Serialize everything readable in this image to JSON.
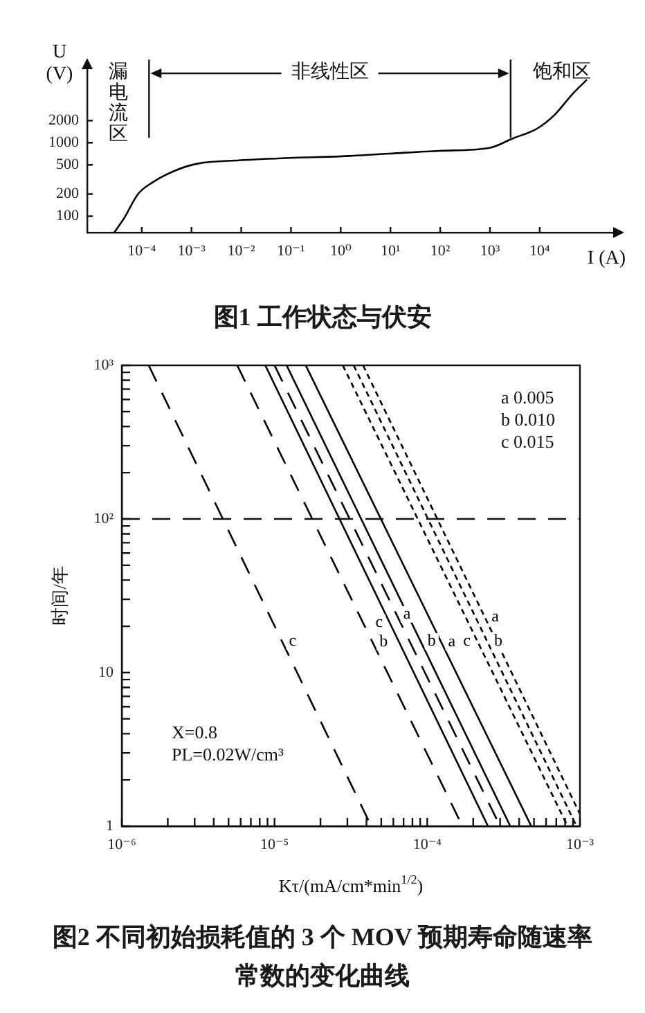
{
  "chart_data": [
    {
      "type": "line",
      "title": "图1 工作状态与伏安",
      "xlabel": "I (A)",
      "ylabel": "U (V)",
      "log": "xy",
      "xlim": [
        8e-06,
        300000.0
      ],
      "ylim": [
        60,
        10000
      ],
      "xticks": [
        {
          "value": 0.0001,
          "label": "10⁻⁴"
        },
        {
          "value": 0.001,
          "label": "10⁻³"
        },
        {
          "value": 0.01,
          "label": "10⁻²"
        },
        {
          "value": 0.1,
          "label": "10⁻¹"
        },
        {
          "value": 1,
          "label": "10⁰"
        },
        {
          "value": 10,
          "label": "10¹"
        },
        {
          "value": 100,
          "label": "10²"
        },
        {
          "value": 1000,
          "label": "10³"
        },
        {
          "value": 10000,
          "label": "10⁴"
        }
      ],
      "yticks": [
        100,
        200,
        500,
        1000,
        2000
      ],
      "series": [
        {
          "color": "#000000",
          "x": [
            2.8e-05,
            4.5e-05,
            8.4e-05,
            0.00016,
            0.00048,
            0.00135,
            0.009,
            0.093,
            0.93,
            9.5,
            98,
            980,
            2950,
            8800,
            20000,
            47000,
            89000
          ],
          "values": [
            60,
            96,
            200,
            285,
            420,
            520,
            575,
            620,
            650,
            710,
            775,
            850,
            1150,
            1550,
            2400,
            4700,
            7200
          ]
        }
      ],
      "ref_lines": [
        {
          "axis": "x",
          "value": 0.00014
        },
        {
          "axis": "x",
          "value": 2600
        }
      ],
      "annotations": [
        "漏电流区",
        "非线性区",
        "饱和区"
      ]
    },
    {
      "type": "line",
      "title": "图2 不同初始损耗值的 3 个 MOV 预期寿命随速率常数的变化曲线",
      "xlabel": "Kτ/(mA/cm*min$^{1/2}$)",
      "ylabel": "时间/年",
      "log": "xy",
      "xlim": [
        1e-06,
        0.001
      ],
      "ylim": [
        1,
        1000
      ],
      "xticks": [
        {
          "value": 1e-06,
          "label": "10⁻⁶"
        },
        {
          "value": 2e-06,
          "label": null
        },
        {
          "value": 3e-06,
          "label": null
        },
        {
          "value": 4e-06,
          "label": null
        },
        {
          "value": 5e-06,
          "label": null
        },
        {
          "value": 6e-06,
          "label": null
        },
        {
          "value": 7e-06,
          "label": null
        },
        {
          "value": 8e-06,
          "label": null
        },
        {
          "value": 9e-06,
          "label": null
        },
        {
          "value": 1e-05,
          "label": "10⁻⁵"
        },
        {
          "value": 2e-05,
          "label": null
        },
        {
          "value": 3e-05,
          "label": null
        },
        {
          "value": 4e-05,
          "label": null
        },
        {
          "value": 5e-05,
          "label": null
        },
        {
          "value": 6e-05,
          "label": null
        },
        {
          "value": 7e-05,
          "label": null
        },
        {
          "value": 8e-05,
          "label": null
        },
        {
          "value": 9e-05,
          "label": null
        },
        {
          "value": 0.0001,
          "label": "10⁻⁴"
        },
        {
          "value": 0.0002,
          "label": null
        },
        {
          "value": 0.0003,
          "label": null
        },
        {
          "value": 0.0004,
          "label": null
        },
        {
          "value": 0.0005,
          "label": null
        },
        {
          "value": 0.0006,
          "label": null
        },
        {
          "value": 0.0007,
          "label": null
        },
        {
          "value": 0.0008,
          "label": null
        },
        {
          "value": 0.0009,
          "label": null
        },
        {
          "value": 0.001,
          "label": "10⁻³"
        }
      ],
      "yticks": [
        1,
        {
          "value": 2,
          "label": null
        },
        {
          "value": 3,
          "label": null
        },
        {
          "value": 4,
          "label": null
        },
        {
          "value": 5,
          "label": null
        },
        {
          "value": 6,
          "label": null
        },
        {
          "value": 7,
          "label": null
        },
        {
          "value": 8,
          "label": null
        },
        {
          "value": 9,
          "label": null
        },
        10,
        {
          "value": 20,
          "label": null
        },
        {
          "value": 30,
          "label": null
        },
        {
          "value": 40,
          "label": null
        },
        {
          "value": 50,
          "label": null
        },
        {
          "value": 60,
          "label": null
        },
        {
          "value": 70,
          "label": null
        },
        {
          "value": 80,
          "label": null
        },
        {
          "value": 90,
          "label": null
        },
        {
          "value": 100,
          "label": "10²"
        },
        {
          "value": 200,
          "label": null
        },
        {
          "value": 300,
          "label": null
        },
        {
          "value": 400,
          "label": null
        },
        {
          "value": 500,
          "label": null
        },
        {
          "value": 600,
          "label": null
        },
        {
          "value": 700,
          "label": null
        },
        {
          "value": 800,
          "label": null
        },
        {
          "value": 900,
          "label": null
        },
        {
          "value": 1000,
          "label": "10³"
        }
      ],
      "series": [
        {
          "name": "c",
          "color": "#000000",
          "line_style": "dashed",
          "x": [
            1.5e-06,
            4.3e-05
          ],
          "values": [
            1000,
            1
          ]
        },
        {
          "name": "b",
          "color": "#000000",
          "line_style": "dashed",
          "x": [
            5.7e-06,
            0.00017
          ],
          "values": [
            1000,
            1
          ]
        },
        {
          "name": "c",
          "color": "#000000",
          "line_style": "solid",
          "x": [
            8.7e-06,
            0.00025
          ],
          "values": [
            1000,
            1
          ]
        },
        {
          "name": "a",
          "color": "#000000",
          "line_style": "dashed",
          "x": [
            1e-05,
            0.0003
          ],
          "values": [
            1000,
            1
          ]
        },
        {
          "name": "b",
          "color": "#000000",
          "line_style": "solid",
          "x": [
            1.2e-05,
            0.00035
          ],
          "values": [
            1000,
            1
          ]
        },
        {
          "name": "a",
          "color": "#000000",
          "line_style": "solid",
          "x": [
            1.6e-05,
            0.00048
          ],
          "values": [
            1000,
            1
          ]
        },
        {
          "name": "c",
          "color": "#000000",
          "line_style": "dotted",
          "x": [
            2.8e-05,
            0.00083
          ],
          "values": [
            1000,
            1
          ]
        },
        {
          "name": "b",
          "color": "#000000",
          "line_style": "dotted",
          "x": [
            3.3e-05,
            0.00095
          ],
          "values": [
            1000,
            1
          ]
        },
        {
          "name": "a",
          "color": "#000000",
          "line_style": "dotted",
          "x": [
            3.8e-05,
            0.001
          ],
          "values": [
            1000,
            1.2
          ]
        }
      ],
      "ref_lines": [
        {
          "axis": "y",
          "value": 100,
          "line_style": "dashed"
        }
      ],
      "annotations": [
        "a 0.005",
        "b 0.010",
        "c 0.015",
        "X=0.8",
        "PL=0.02W/cm³"
      ]
    }
  ]
}
